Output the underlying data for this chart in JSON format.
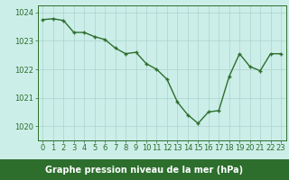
{
  "x": [
    0,
    1,
    2,
    3,
    4,
    5,
    6,
    7,
    8,
    9,
    10,
    11,
    12,
    13,
    14,
    15,
    16,
    17,
    18,
    19,
    20,
    21,
    22,
    23
  ],
  "y": [
    1023.75,
    1023.78,
    1023.72,
    1023.3,
    1023.3,
    1023.15,
    1023.05,
    1022.75,
    1022.55,
    1022.6,
    1022.2,
    1022.0,
    1021.65,
    1020.85,
    1020.4,
    1020.1,
    1020.5,
    1020.55,
    1021.75,
    1022.55,
    1022.1,
    1021.95,
    1022.55,
    1022.55
  ],
  "line_color": "#2d6e2d",
  "marker_color": "#2d6e2d",
  "bg_color": "#cceee8",
  "plot_bg_color": "#cceee8",
  "grid_color": "#aad4ce",
  "axis_color": "#2d6e2d",
  "bottom_bar_color": "#2d6e2d",
  "xlabel": "Graphe pression niveau de la mer (hPa)",
  "xlim": [
    -0.5,
    23.5
  ],
  "ylim": [
    1019.5,
    1024.25
  ],
  "yticks": [
    1020,
    1021,
    1022,
    1023,
    1024
  ],
  "xticks": [
    0,
    1,
    2,
    3,
    4,
    5,
    6,
    7,
    8,
    9,
    10,
    11,
    12,
    13,
    14,
    15,
    16,
    17,
    18,
    19,
    20,
    21,
    22,
    23
  ],
  "xlabel_fontsize": 7.0,
  "tick_fontsize": 6.0,
  "line_width": 1.0,
  "marker_size": 3.5,
  "bottom_bar_height": 0.12
}
